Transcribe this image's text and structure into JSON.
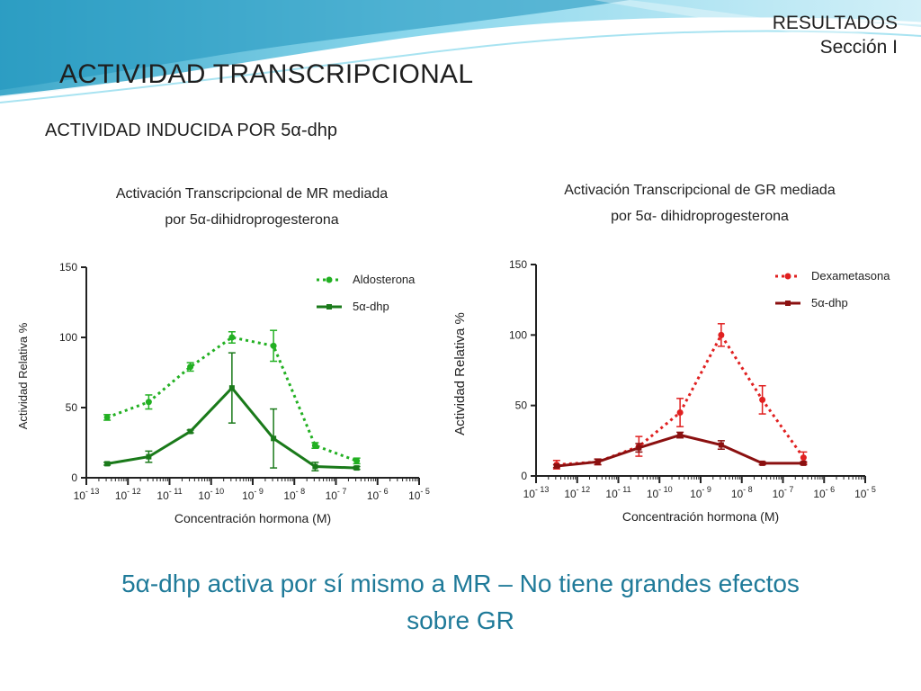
{
  "header": {
    "section_title": "RESULTADOS",
    "section_subtitle": "Sección I",
    "title": "ACTIVIDAD TRANSCRIPCIONAL",
    "subtitle": "ACTIVIDAD INDUCIDA POR 5α-dhp"
  },
  "conclusion": {
    "line1": "5α-dhp activa por sí mismo a MR – No tiene grandes efectos",
    "line2": "sobre GR"
  },
  "colors": {
    "mr_reference": "#22b022",
    "mr_5adhp": "#1a7a1a",
    "gr_reference": "#e02020",
    "gr_5adhp": "#8b1010",
    "banner_light": "#cdeef7",
    "banner_mid": "#7fd3ea",
    "banner_dark": "#2a9fc4"
  },
  "chart_data": [
    {
      "type": "line",
      "title_line1": "Activación Transcripcional de MR mediada",
      "title_line2": "por 5α-dihidroprogesterona",
      "xlabel": "Concentración hormona (M)",
      "ylabel": "Actividad Relativa %",
      "x_scale": "log",
      "x_tick_exponents": [
        -13,
        -12,
        -11,
        -10,
        -9,
        -8,
        -7,
        -6,
        -5
      ],
      "x_tick_base": "10",
      "y_ticks": [
        0,
        50,
        100,
        150
      ],
      "ylim": [
        0,
        150
      ],
      "legend_position": "top-right",
      "grid": false,
      "series": [
        {
          "name": "Aldosterona",
          "style": "dotted",
          "color": "#22b022",
          "x_exp": [
            -12.5,
            -12,
            -11.5,
            -11,
            -10.5,
            -10,
            -9.5,
            -9,
            -8.5,
            -8,
            -7.5,
            -7,
            -6.5,
            -6,
            -5.5
          ],
          "points": [
            {
              "x": -12.5,
              "y": 43,
              "err": 2
            },
            {
              "x": -11.5,
              "y": 54,
              "err": 5
            },
            {
              "x": -10.5,
              "y": 79,
              "err": 3
            },
            {
              "x": -9.5,
              "y": 100,
              "err": 4
            },
            {
              "x": -8.5,
              "y": 94,
              "err": 11
            },
            {
              "x": -7.5,
              "y": 23,
              "err": 2
            },
            {
              "x": -6.5,
              "y": 12,
              "err": 2
            }
          ]
        },
        {
          "name": "5α-dhp",
          "style": "solid",
          "color": "#1a7a1a",
          "points": [
            {
              "x": -12.5,
              "y": 10,
              "err": 1
            },
            {
              "x": -11.5,
              "y": 15,
              "err": 4
            },
            {
              "x": -10.5,
              "y": 33,
              "err": 1
            },
            {
              "x": -9.5,
              "y": 64,
              "err": 25
            },
            {
              "x": -8.5,
              "y": 28,
              "err": 21
            },
            {
              "x": -7.5,
              "y": 8,
              "err": 3
            },
            {
              "x": -6.5,
              "y": 7,
              "err": 1
            }
          ]
        }
      ]
    },
    {
      "type": "line",
      "title_line1": "Activación Transcripcional de GR mediada",
      "title_line2": "por 5α- dihidroprogesterona",
      "xlabel": "Concentración hormona (M)",
      "ylabel": "Actividad Relativa %",
      "x_scale": "log",
      "x_tick_exponents": [
        -13,
        -12,
        -11,
        -10,
        -9,
        -8,
        -7,
        -6,
        -5
      ],
      "x_tick_base": "10",
      "y_ticks": [
        0,
        50,
        100,
        150
      ],
      "ylim": [
        0,
        150
      ],
      "legend_position": "top-right",
      "grid": false,
      "series": [
        {
          "name": "Dexametasona",
          "style": "dotted",
          "color": "#e02020",
          "points": [
            {
              "x": -12.5,
              "y": 8,
              "err": 3
            },
            {
              "x": -11.5,
              "y": 10,
              "err": 2
            },
            {
              "x": -10.5,
              "y": 21,
              "err": 7
            },
            {
              "x": -9.5,
              "y": 45,
              "err": 10
            },
            {
              "x": -8.5,
              "y": 100,
              "err": 8
            },
            {
              "x": -7.5,
              "y": 54,
              "err": 10
            },
            {
              "x": -6.5,
              "y": 13,
              "err": 4
            }
          ]
        },
        {
          "name": "5α-dhp",
          "style": "solid",
          "color": "#8b1010",
          "points": [
            {
              "x": -12.5,
              "y": 7,
              "err": 1
            },
            {
              "x": -11.5,
              "y": 10,
              "err": 2
            },
            {
              "x": -10.5,
              "y": 20,
              "err": 3
            },
            {
              "x": -9.5,
              "y": 29,
              "err": 2
            },
            {
              "x": -8.5,
              "y": 22,
              "err": 3
            },
            {
              "x": -7.5,
              "y": 9,
              "err": 1
            },
            {
              "x": -6.5,
              "y": 9,
              "err": 1
            }
          ]
        }
      ]
    }
  ]
}
